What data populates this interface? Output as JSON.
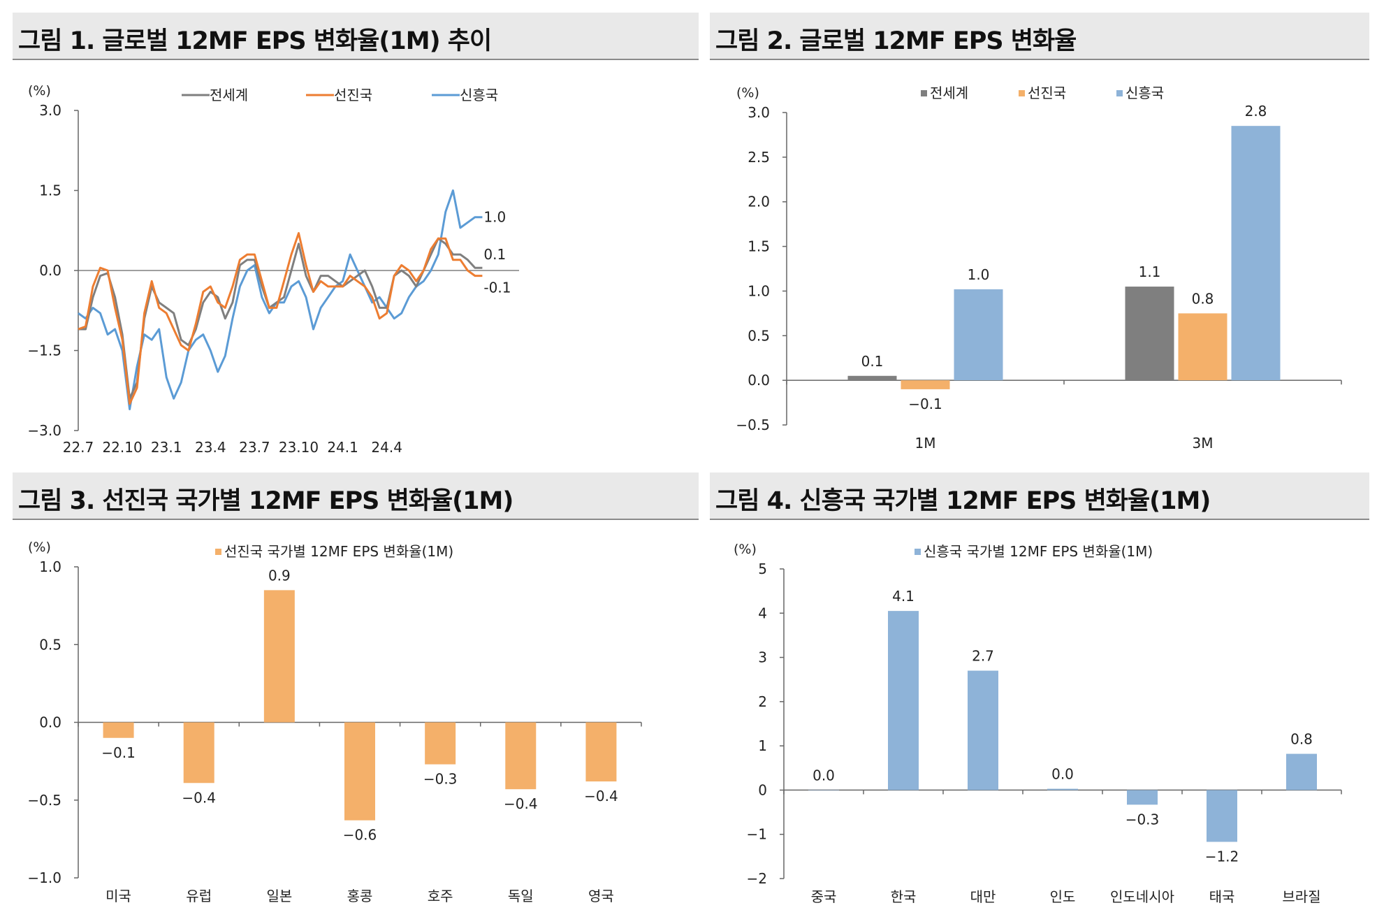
{
  "panels": [
    {
      "title": "그림 1. 글로벌 12MF EPS 변화율(1M) 추이"
    },
    {
      "title": "그림 2. 글로벌 12MF EPS 변화율"
    },
    {
      "title": "그림 3. 선진국 국가별 12MF EPS 변화율(1M)"
    },
    {
      "title": "그림 4. 신흥국 국가별 12MF EPS 변화율(1M)"
    }
  ],
  "colors": {
    "world": "#7f7f7f",
    "developed": "#f4b06a",
    "developed_line": "#ed7d31",
    "emerging": "#8eb3d8",
    "emerging_line": "#5b9bd5",
    "axis": "#666666"
  },
  "chart_data": [
    {
      "type": "line",
      "title": "그림 1. 글로벌 12MF EPS 변화율(1M) 추이",
      "ylabel": "(%)",
      "ylim": [
        -3.0,
        3.0
      ],
      "yticks": [
        3.0,
        1.5,
        0.0,
        -1.5,
        -3.0
      ],
      "ytick_labels": [
        "3.0",
        "1.5",
        "0.0",
        "−1.5",
        "−3.0"
      ],
      "xlim": [
        0,
        30
      ],
      "xticks": [
        0,
        3,
        6,
        9,
        12,
        15,
        18,
        21
      ],
      "xtick_labels": [
        "22.7",
        "22.10",
        "23.1",
        "23.4",
        "23.7",
        "23.10",
        "24.1",
        "24.4"
      ],
      "series": [
        {
          "name": "전세계",
          "color": "#7f7f7f",
          "end_label": "0.1",
          "points": [
            [
              0,
              -1.1
            ],
            [
              0.5,
              -1.1
            ],
            [
              1,
              -0.5
            ],
            [
              1.5,
              -0.1
            ],
            [
              2,
              -0.05
            ],
            [
              2.5,
              -0.5
            ],
            [
              3,
              -1.2
            ],
            [
              3.5,
              -2.4
            ],
            [
              4,
              -2.1
            ],
            [
              4.5,
              -0.9
            ],
            [
              5,
              -0.3
            ],
            [
              5.5,
              -0.6
            ],
            [
              6,
              -0.7
            ],
            [
              6.5,
              -0.8
            ],
            [
              7,
              -1.3
            ],
            [
              7.5,
              -1.4
            ],
            [
              8,
              -1.1
            ],
            [
              8.5,
              -0.6
            ],
            [
              9,
              -0.4
            ],
            [
              9.5,
              -0.5
            ],
            [
              10,
              -0.9
            ],
            [
              10.5,
              -0.6
            ],
            [
              11,
              0.1
            ],
            [
              11.5,
              0.2
            ],
            [
              12,
              0.2
            ],
            [
              12.5,
              -0.3
            ],
            [
              13,
              -0.7
            ],
            [
              13.5,
              -0.6
            ],
            [
              14,
              -0.5
            ],
            [
              14.5,
              0.0
            ],
            [
              15,
              0.5
            ],
            [
              15.5,
              -0.1
            ],
            [
              16,
              -0.4
            ],
            [
              16.5,
              -0.1
            ],
            [
              17,
              -0.1
            ],
            [
              17.5,
              -0.2
            ],
            [
              18,
              -0.3
            ],
            [
              18.5,
              -0.2
            ],
            [
              19,
              -0.1
            ],
            [
              19.5,
              0.0
            ],
            [
              20,
              -0.3
            ],
            [
              20.5,
              -0.7
            ],
            [
              21,
              -0.7
            ],
            [
              21.5,
              -0.1
            ],
            [
              22,
              0.0
            ],
            [
              22.5,
              -0.1
            ],
            [
              23,
              -0.3
            ],
            [
              23.5,
              0.0
            ],
            [
              24,
              0.3
            ],
            [
              24.5,
              0.6
            ],
            [
              25,
              0.5
            ],
            [
              25.5,
              0.3
            ],
            [
              26,
              0.3
            ],
            [
              26.5,
              0.2
            ],
            [
              27,
              0.05
            ],
            [
              27.5,
              0.05
            ]
          ]
        },
        {
          "name": "선진국",
          "color": "#ed7d31",
          "end_label": "-0.1",
          "points": [
            [
              0,
              -1.1
            ],
            [
              0.5,
              -1.05
            ],
            [
              1,
              -0.3
            ],
            [
              1.5,
              0.05
            ],
            [
              2,
              0.0
            ],
            [
              2.5,
              -0.7
            ],
            [
              3,
              -1.3
            ],
            [
              3.5,
              -2.5
            ],
            [
              4,
              -2.2
            ],
            [
              4.5,
              -0.8
            ],
            [
              5,
              -0.2
            ],
            [
              5.5,
              -0.7
            ],
            [
              6,
              -0.8
            ],
            [
              6.5,
              -1.1
            ],
            [
              7,
              -1.4
            ],
            [
              7.5,
              -1.5
            ],
            [
              8,
              -1.0
            ],
            [
              8.5,
              -0.4
            ],
            [
              9,
              -0.3
            ],
            [
              9.5,
              -0.6
            ],
            [
              10,
              -0.7
            ],
            [
              10.5,
              -0.3
            ],
            [
              11,
              0.2
            ],
            [
              11.5,
              0.3
            ],
            [
              12,
              0.3
            ],
            [
              12.5,
              -0.2
            ],
            [
              13,
              -0.7
            ],
            [
              13.5,
              -0.7
            ],
            [
              14,
              -0.2
            ],
            [
              14.5,
              0.3
            ],
            [
              15,
              0.7
            ],
            [
              15.5,
              0.1
            ],
            [
              16,
              -0.4
            ],
            [
              16.5,
              -0.2
            ],
            [
              17,
              -0.3
            ],
            [
              17.5,
              -0.3
            ],
            [
              18,
              -0.3
            ],
            [
              18.5,
              -0.1
            ],
            [
              19,
              -0.2
            ],
            [
              19.5,
              -0.3
            ],
            [
              20,
              -0.5
            ],
            [
              20.5,
              -0.9
            ],
            [
              21,
              -0.8
            ],
            [
              21.5,
              -0.1
            ],
            [
              22,
              0.1
            ],
            [
              22.5,
              0.0
            ],
            [
              23,
              -0.2
            ],
            [
              23.5,
              0.0
            ],
            [
              24,
              0.4
            ],
            [
              24.5,
              0.6
            ],
            [
              25,
              0.6
            ],
            [
              25.5,
              0.2
            ],
            [
              26,
              0.2
            ],
            [
              26.5,
              0.0
            ],
            [
              27,
              -0.1
            ],
            [
              27.5,
              -0.1
            ]
          ]
        },
        {
          "name": "신흥국",
          "color": "#5b9bd5",
          "end_label": "1.0",
          "points": [
            [
              0,
              -0.8
            ],
            [
              0.5,
              -0.9
            ],
            [
              1,
              -0.7
            ],
            [
              1.5,
              -0.8
            ],
            [
              2,
              -1.2
            ],
            [
              2.5,
              -1.1
            ],
            [
              3,
              -1.5
            ],
            [
              3.5,
              -2.6
            ],
            [
              4,
              -1.8
            ],
            [
              4.5,
              -1.2
            ],
            [
              5,
              -1.3
            ],
            [
              5.5,
              -1.1
            ],
            [
              6,
              -2.0
            ],
            [
              6.5,
              -2.4
            ],
            [
              7,
              -2.1
            ],
            [
              7.5,
              -1.5
            ],
            [
              8,
              -1.3
            ],
            [
              8.5,
              -1.2
            ],
            [
              9,
              -1.5
            ],
            [
              9.5,
              -1.9
            ],
            [
              10,
              -1.6
            ],
            [
              10.5,
              -0.9
            ],
            [
              11,
              -0.3
            ],
            [
              11.5,
              0.0
            ],
            [
              12,
              0.1
            ],
            [
              12.5,
              -0.5
            ],
            [
              13,
              -0.8
            ],
            [
              13.5,
              -0.6
            ],
            [
              14,
              -0.6
            ],
            [
              14.5,
              -0.3
            ],
            [
              15,
              -0.2
            ],
            [
              15.5,
              -0.5
            ],
            [
              16,
              -1.1
            ],
            [
              16.5,
              -0.7
            ],
            [
              17,
              -0.5
            ],
            [
              17.5,
              -0.3
            ],
            [
              18,
              -0.2
            ],
            [
              18.5,
              0.3
            ],
            [
              19,
              0.0
            ],
            [
              19.5,
              -0.3
            ],
            [
              20,
              -0.6
            ],
            [
              20.5,
              -0.5
            ],
            [
              21,
              -0.7
            ],
            [
              21.5,
              -0.9
            ],
            [
              22,
              -0.8
            ],
            [
              22.5,
              -0.5
            ],
            [
              23,
              -0.3
            ],
            [
              23.5,
              -0.2
            ],
            [
              24,
              0.0
            ],
            [
              24.5,
              0.3
            ],
            [
              25,
              1.1
            ],
            [
              25.5,
              1.5
            ],
            [
              26,
              0.8
            ],
            [
              26.5,
              0.9
            ],
            [
              27,
              1.0
            ],
            [
              27.5,
              1.0
            ]
          ]
        }
      ]
    },
    {
      "type": "bar",
      "title": "그림 2. 글로벌 12MF EPS 변화율",
      "ylabel": "(%)",
      "ylim": [
        -0.5,
        3.0
      ],
      "yticks": [
        3.0,
        2.5,
        2.0,
        1.5,
        1.0,
        0.5,
        0.0,
        -0.5
      ],
      "ytick_labels": [
        "3.0",
        "2.5",
        "2.0",
        "1.5",
        "1.0",
        "0.5",
        "0.0",
        "−0.5"
      ],
      "categories": [
        "1M",
        "3M"
      ],
      "series": [
        {
          "name": "전세계",
          "color": "#7f7f7f",
          "values": [
            0.05,
            1.05
          ],
          "labels": [
            "0.1",
            "1.1"
          ]
        },
        {
          "name": "선진국",
          "color": "#f4b06a",
          "values": [
            -0.1,
            0.75
          ],
          "labels": [
            "−0.1",
            "0.8"
          ]
        },
        {
          "name": "신흥국",
          "color": "#8eb3d8",
          "values": [
            1.02,
            2.85
          ],
          "labels": [
            "1.0",
            "2.8"
          ]
        }
      ]
    },
    {
      "type": "bar",
      "title": "그림 3. 선진국 국가별 12MF EPS 변화율(1M)",
      "ylabel": "(%)",
      "ylim": [
        -1.0,
        1.0
      ],
      "yticks": [
        1.0,
        0.5,
        0.0,
        -0.5,
        -1.0
      ],
      "ytick_labels": [
        "1.0",
        "0.5",
        "0.0",
        "−0.5",
        "−1.0"
      ],
      "categories": [
        "미국",
        "유럽",
        "일본",
        "홍콩",
        "호주",
        "독일",
        "영국"
      ],
      "series": [
        {
          "name": "선진국 국가별 12MF EPS 변화율(1M)",
          "color": "#f4b06a",
          "values": [
            -0.1,
            -0.39,
            0.85,
            -0.63,
            -0.27,
            -0.43,
            -0.38
          ],
          "labels": [
            "−0.1",
            "−0.4",
            "0.9",
            "−0.6",
            "−0.3",
            "−0.4",
            "−0.4"
          ]
        }
      ]
    },
    {
      "type": "bar",
      "title": "그림 4. 신흥국 국가별 12MF EPS 변화율(1M)",
      "ylabel": "(%)",
      "ylim": [
        -2,
        5
      ],
      "yticks": [
        5,
        4,
        3,
        2,
        1,
        0,
        -1,
        -2
      ],
      "ytick_labels": [
        "5",
        "4",
        "3",
        "2",
        "1",
        "0",
        "−1",
        "−2"
      ],
      "categories": [
        "중국",
        "한국",
        "대만",
        "인도",
        "인도네시아",
        "태국",
        "브라질"
      ],
      "series": [
        {
          "name": "신흥국 국가별 12MF EPS 변화율(1M)",
          "color": "#8eb3d8",
          "values": [
            0.0,
            4.05,
            2.7,
            0.03,
            -0.33,
            -1.17,
            0.82
          ],
          "labels": [
            "0.0",
            "4.1",
            "2.7",
            "0.0",
            "−0.3",
            "−1.2",
            "0.8"
          ]
        }
      ]
    }
  ]
}
